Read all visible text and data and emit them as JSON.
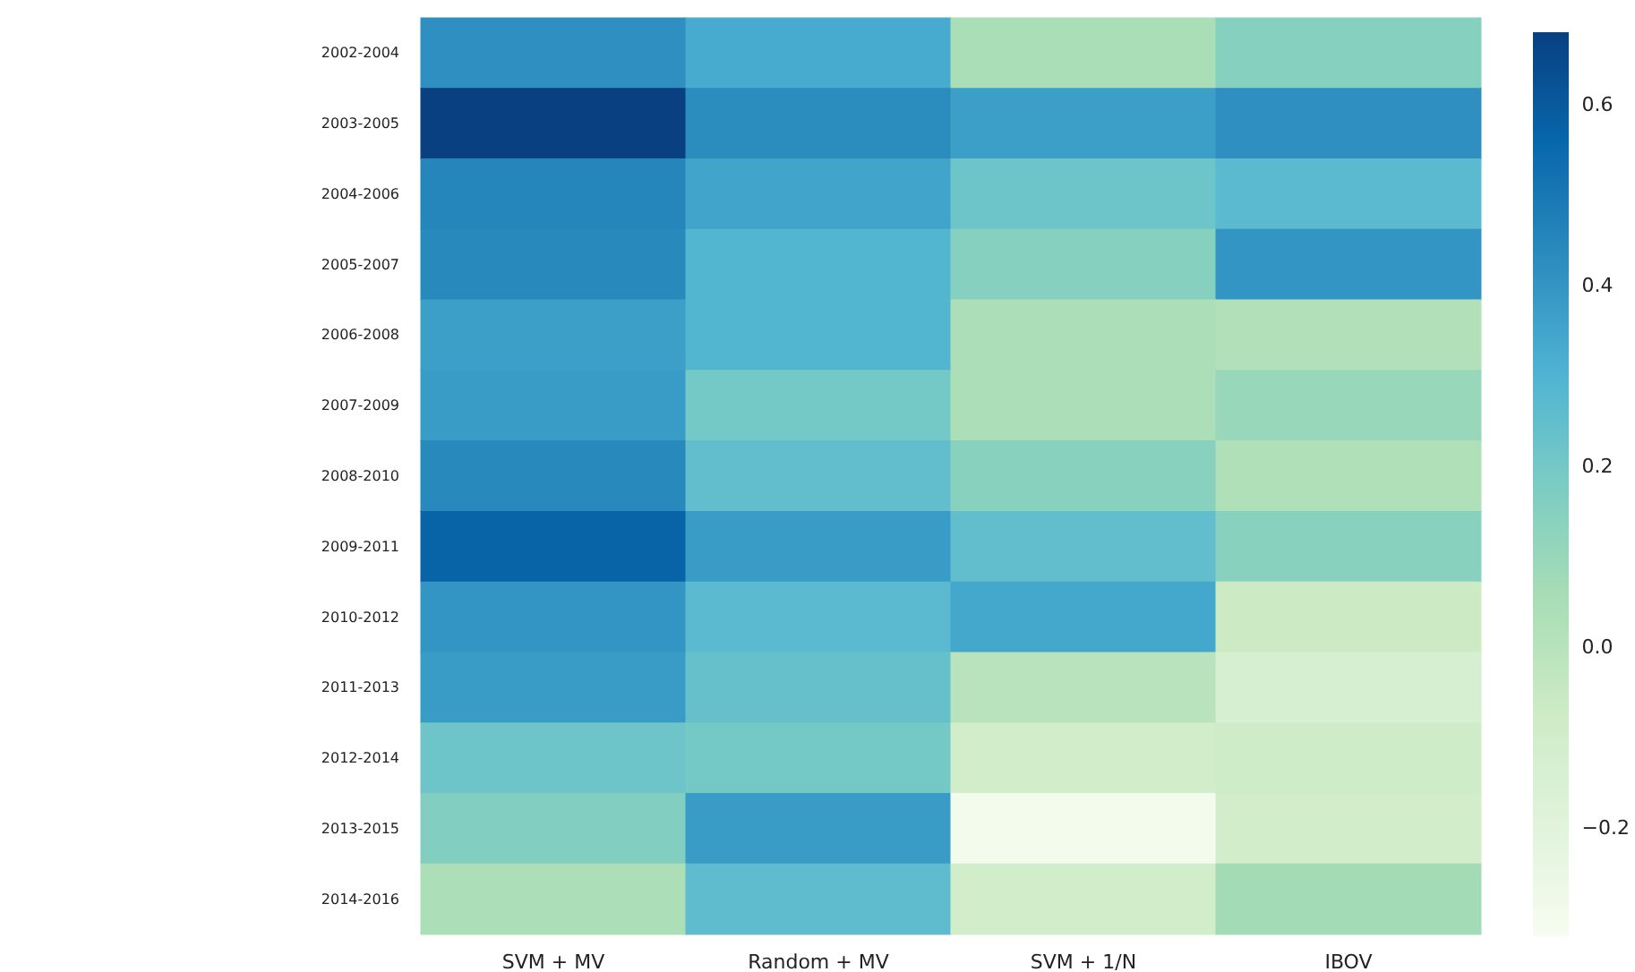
{
  "chart_data": {
    "type": "heatmap",
    "categories": [
      "SVM + MV",
      "Random + MV",
      "SVM + 1/N",
      "IBOV"
    ],
    "y_categories": [
      "2002-2004",
      "2003-2005",
      "2004-2006",
      "2005-2007",
      "2006-2008",
      "2007-2009",
      "2008-2010",
      "2009-2011",
      "2010-2012",
      "2011-2013",
      "2012-2014",
      "2013-2015",
      "2014-2016"
    ],
    "cells": [
      [
        0.42,
        0.33,
        0.05,
        0.15
      ],
      [
        0.68,
        0.43,
        0.37,
        0.42
      ],
      [
        0.45,
        0.35,
        0.22,
        0.27
      ],
      [
        0.44,
        0.29,
        0.15,
        0.4
      ],
      [
        0.37,
        0.29,
        0.04,
        0.02
      ],
      [
        0.38,
        0.2,
        0.04,
        0.1
      ],
      [
        0.44,
        0.25,
        0.14,
        0.03
      ],
      [
        0.57,
        0.38,
        0.25,
        0.14
      ],
      [
        0.4,
        0.27,
        0.34,
        -0.07
      ],
      [
        0.38,
        0.24,
        0.0,
        -0.13
      ],
      [
        0.22,
        0.2,
        -0.1,
        -0.08
      ],
      [
        0.16,
        0.38,
        -0.3,
        -0.1
      ],
      [
        0.04,
        0.26,
        -0.1,
        0.07
      ]
    ],
    "clim": [
      -0.32,
      0.68
    ],
    "cticks": [
      {
        "value": -0.2,
        "label": "−0.2"
      },
      {
        "value": 0.0,
        "label": "0.0"
      },
      {
        "value": 0.2,
        "label": "0.2"
      },
      {
        "value": 0.4,
        "label": "0.4"
      },
      {
        "value": 0.6,
        "label": "0.6"
      }
    ]
  }
}
